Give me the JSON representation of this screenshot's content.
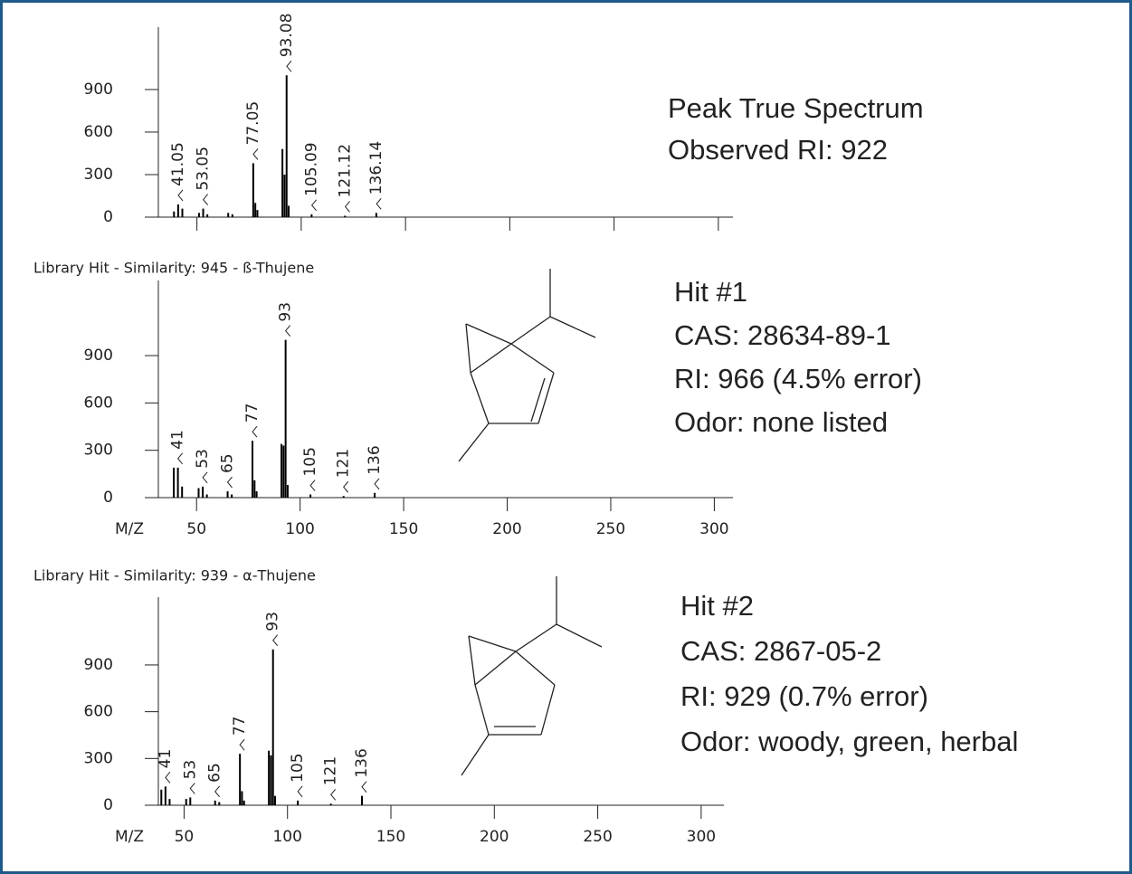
{
  "chart_data": [
    {
      "type": "bar",
      "xlim": [
        25,
        307
      ],
      "xticks": [
        50,
        100,
        150,
        200,
        250,
        300
      ],
      "xtick_labels": false,
      "ylim": [
        0,
        1340
      ],
      "yticks": [
        0,
        300,
        600,
        900
      ],
      "color": "#000000",
      "x": [
        39,
        41,
        43,
        51,
        53,
        55,
        65,
        67,
        77,
        78,
        79,
        91,
        92,
        93,
        94,
        105,
        121,
        136
      ],
      "values": [
        40,
        90,
        60,
        30,
        60,
        20,
        30,
        20,
        380,
        100,
        50,
        480,
        300,
        1000,
        80,
        20,
        10,
        30
      ],
      "annotated_peaks": [
        41.05,
        53.05,
        77.05,
        93.08,
        105.09,
        121.12,
        136.14
      ],
      "info": [
        "Peak True Spectrum",
        "Observed RI: 922"
      ]
    },
    {
      "type": "bar",
      "title": "Library Hit - Similarity: 945 - ß-Thujene",
      "xlabel": "M/Z",
      "xlim": [
        25,
        309
      ],
      "xticks": [
        50,
        100,
        150,
        200,
        250,
        300
      ],
      "xtick_labels": true,
      "ylim": [
        0,
        1376
      ],
      "yticks": [
        0,
        300,
        600,
        900
      ],
      "color": "#000000",
      "x": [
        39,
        41,
        43,
        51,
        53,
        55,
        65,
        67,
        77,
        78,
        79,
        91,
        92,
        93,
        94,
        105,
        121,
        136
      ],
      "values": [
        190,
        190,
        70,
        60,
        70,
        20,
        40,
        20,
        360,
        110,
        40,
        340,
        330,
        1000,
        80,
        20,
        10,
        30
      ],
      "annotated_peaks": [
        41,
        53,
        65,
        77,
        93,
        105,
        121,
        136
      ],
      "info": [
        "Hit #1",
        "CAS: 28634-89-1",
        "RI: 966 (4.5% error)",
        "Odor: none listed"
      ]
    },
    {
      "type": "bar",
      "title": "Library Hit - Similarity: 939 - α-Thujene",
      "xlabel": "M/Z",
      "xlim": [
        31,
        311
      ],
      "xticks": [
        50,
        100,
        150,
        200,
        250,
        300
      ],
      "xtick_labels": true,
      "ylim": [
        0,
        1335
      ],
      "yticks": [
        0,
        300,
        600,
        900
      ],
      "color": "#000000",
      "x": [
        39,
        41,
        43,
        51,
        53,
        65,
        67,
        77,
        78,
        79,
        91,
        92,
        93,
        94,
        105,
        121,
        136
      ],
      "values": [
        100,
        120,
        40,
        40,
        50,
        30,
        20,
        330,
        90,
        30,
        350,
        320,
        1000,
        60,
        30,
        10,
        60
      ],
      "annotated_peaks": [
        41,
        53,
        65,
        77,
        93,
        105,
        121,
        136
      ],
      "info": [
        "Hit #2",
        "CAS: 2867-05-2",
        "RI: 929 (0.7% error)",
        "Odor: woody, green, herbal"
      ]
    }
  ]
}
